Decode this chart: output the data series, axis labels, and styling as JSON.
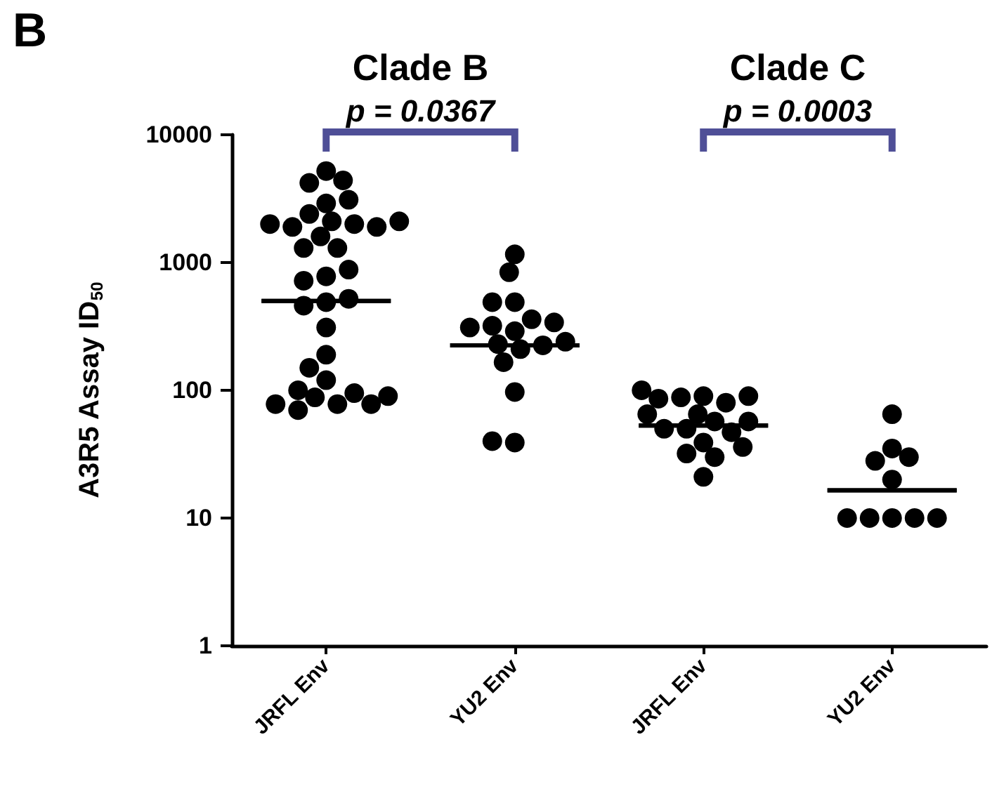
{
  "chart_data": {
    "type": "scatter",
    "title": "B",
    "ylabel": "A3R5 Assay ID$_{50}$",
    "annotations": [
      "Clade B",
      "p = 0.0367",
      "Clade C",
      "p = 0.0003"
    ],
    "log": "y",
    "grid": false,
    "marker": "circle",
    "categories": [
      "JRFL Env",
      "YU2 Env",
      "JRFL Env",
      "YU2 Env"
    ],
    "ylim": [
      1,
      10000
    ],
    "yticks": [
      1,
      10,
      100,
      1000,
      10000
    ],
    "series": [
      {
        "color": "#000000",
        "values": [
          5200,
          1160,
          90,
          65
        ]
      },
      {
        "color": "#000000",
        "values": [
          4200,
          840,
          88,
          35
        ]
      },
      {
        "color": "#000000",
        "values": [
          4400,
          490,
          80,
          28
        ]
      },
      {
        "color": "#000000",
        "values": [
          2900,
          490,
          86,
          30
        ]
      },
      {
        "color": "#000000",
        "values": [
          2400,
          290,
          90,
          20
        ]
      },
      {
        "color": "#000000",
        "values": [
          3100,
          320,
          100,
          10
        ]
      },
      {
        "color": "#000000",
        "values": [
          2100,
          360,
          65,
          10
        ]
      },
      {
        "color": "#000000",
        "values": [
          2000,
          340,
          57,
          10
        ]
      },
      {
        "color": "#000000",
        "values": [
          1900,
          310,
          50,
          10
        ]
      },
      {
        "color": "#000000",
        "values": [
          1600,
          230,
          47,
          10
        ]
      },
      {
        "color": "#000000",
        "values": [
          1300,
          210,
          39,
          null
        ]
      },
      {
        "color": "#000000",
        "values": [
          1300,
          225,
          50,
          null
        ]
      },
      {
        "color": "#000000",
        "values": [
          1900,
          240,
          57,
          null
        ]
      },
      {
        "color": "#000000",
        "values": [
          2000,
          166,
          65,
          null
        ]
      },
      {
        "color": "#000000",
        "values": [
          2100,
          97,
          32,
          null
        ]
      },
      {
        "color": "#000000",
        "values": [
          780,
          39,
          30,
          null
        ]
      },
      {
        "color": "#000000",
        "values": [
          720,
          40,
          36,
          null
        ]
      },
      {
        "color": "#000000",
        "values": [
          880,
          null,
          21,
          null
        ]
      },
      {
        "color": "#000000",
        "values": [
          490,
          null,
          null,
          null
        ]
      },
      {
        "color": "#000000",
        "values": [
          460,
          null,
          null,
          null
        ]
      },
      {
        "color": "#000000",
        "values": [
          520,
          null,
          null,
          null
        ]
      },
      {
        "color": "#000000",
        "values": [
          310,
          null,
          null,
          null
        ]
      },
      {
        "color": "#000000",
        "values": [
          190,
          null,
          null,
          null
        ]
      },
      {
        "color": "#000000",
        "values": [
          150,
          null,
          null,
          null
        ]
      },
      {
        "color": "#000000",
        "values": [
          120,
          null,
          null,
          null
        ]
      },
      {
        "color": "#000000",
        "values": [
          88,
          null,
          null,
          null
        ]
      },
      {
        "color": "#000000",
        "values": [
          78,
          null,
          null,
          null
        ]
      },
      {
        "color": "#000000",
        "values": [
          95,
          null,
          null,
          null
        ]
      },
      {
        "color": "#000000",
        "values": [
          70,
          null,
          null,
          null
        ]
      },
      {
        "color": "#000000",
        "values": [
          78,
          null,
          null,
          null
        ]
      },
      {
        "color": "#000000",
        "values": [
          100,
          null,
          null,
          null
        ]
      },
      {
        "color": "#000000",
        "values": [
          78,
          null,
          null,
          null
        ]
      },
      {
        "color": "#000000",
        "values": [
          90,
          null,
          null,
          null
        ]
      },
      {
        "type": "box",
        "color": "#000000",
        "boxes": [
          {
            "low": 500,
            "q1": 500,
            "median": 500,
            "q3": 500,
            "high": 500
          },
          {
            "low": 225,
            "q1": 225,
            "median": 225,
            "q3": 225,
            "high": 225
          },
          {
            "low": 53,
            "q1": 53,
            "median": 53,
            "q3": 53,
            "high": 53
          },
          {
            "low": 16.5,
            "q1": 16.5,
            "median": 16.5,
            "q3": 16.5,
            "high": 16.5
          }
        ]
      }
    ]
  }
}
